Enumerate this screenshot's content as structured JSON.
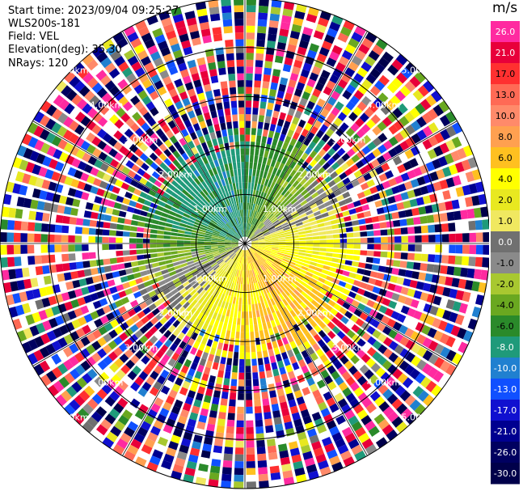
{
  "header": {
    "start_time": "Start time: 2023/09/04 09:25:27",
    "instrument": "WLS200s-181",
    "field": "Field: VEL",
    "elevation": "Elevation(deg): 35.30",
    "nrays": "NRays: 120"
  },
  "chart_data": {
    "type": "heatmap",
    "title": "",
    "projection": "polar-ppi",
    "range_rings_km": [
      1.0,
      2.0,
      3.0,
      4.0,
      5.0
    ],
    "range_ring_labels": [
      "1.00km",
      "2.00km",
      "3.00km",
      "4.00km",
      "5.00km"
    ],
    "max_range_km": 5.0,
    "nrays": 120,
    "colorbar": {
      "unit": "m/s",
      "ticks": [
        26.0,
        21.0,
        17.0,
        13.0,
        10.0,
        8.0,
        6.0,
        4.0,
        2.0,
        1.0,
        0.0,
        -1.0,
        -2.0,
        -4.0,
        -6.0,
        -8.0,
        -10.0,
        -13.0,
        -17.0,
        -21.0,
        -26.0,
        -30.0
      ],
      "tick_labels": [
        "26.0",
        "21.0",
        "17.0",
        "13.0",
        "10.0",
        "8.0",
        "6.0",
        "4.0",
        "2.0",
        "1.0",
        "0.0",
        "-1.0",
        "-2.0",
        "-4.0",
        "-6.0",
        "-8.0",
        "-10.0",
        "-13.0",
        "-17.0",
        "-21.0",
        "-26.0",
        "-30.0"
      ],
      "colors": [
        "#ff2aa0",
        "#e8003a",
        "#ff3030",
        "#ff6a55",
        "#ff8a6a",
        "#ffa050",
        "#ffc020",
        "#ffff00",
        "#e8e820",
        "#f0e860",
        "#707070",
        "#8a8a8a",
        "#a8c830",
        "#6aa820",
        "#2a8a2a",
        "#1f9a7a",
        "#2080d0",
        "#1050ff",
        "#1010d0",
        "#000090",
        "#000060",
        "#00004a"
      ]
    },
    "pattern_regions": [
      {
        "name": "near-range-positive",
        "description_values": "approx +4 to +8 m/s in south/east sector within 2 km"
      },
      {
        "name": "near-range-negative",
        "description_values": "approx -4 to -10 m/s in north/west sector within 2 km"
      },
      {
        "name": "far-range-noise",
        "description_values": "random values beyond ~2.3 km"
      }
    ]
  }
}
